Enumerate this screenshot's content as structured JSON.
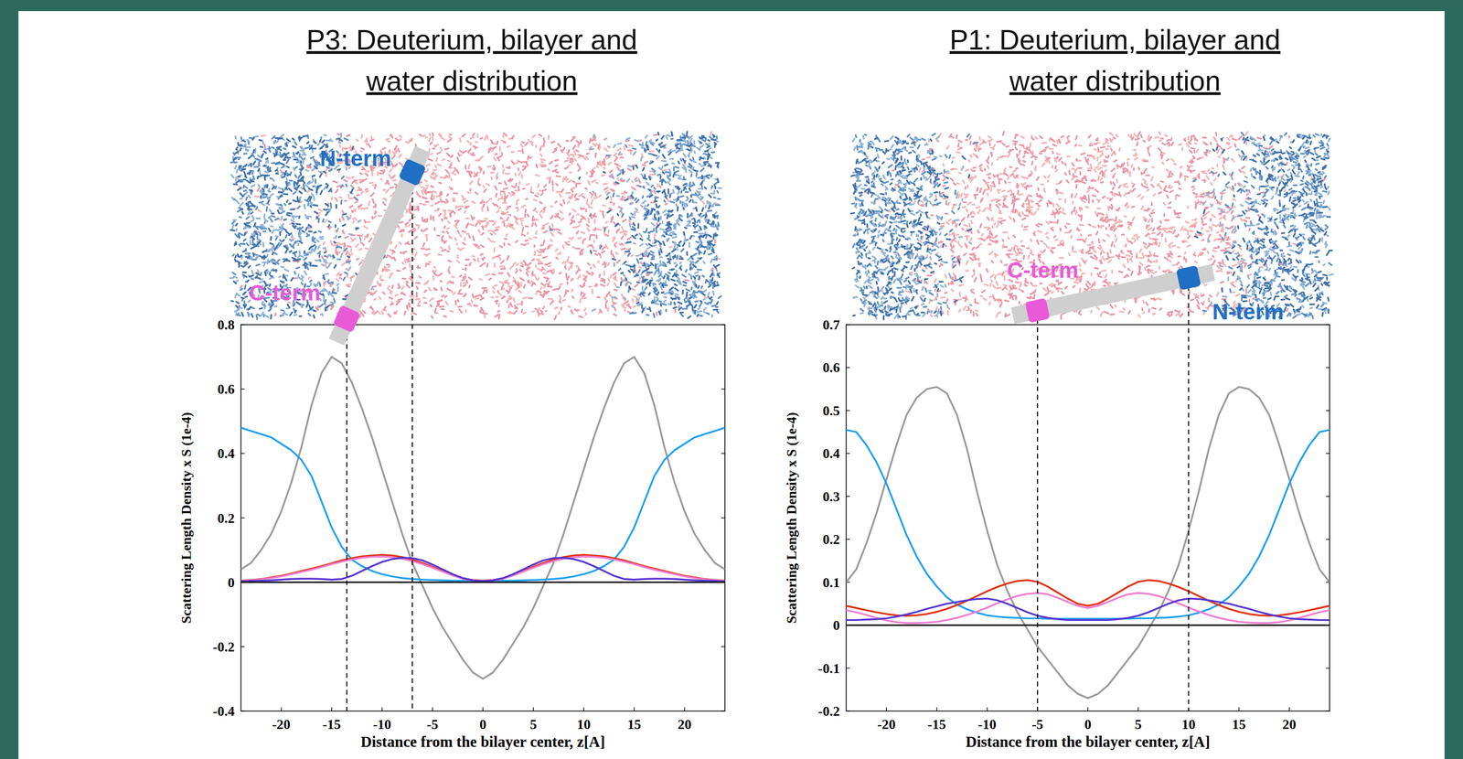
{
  "chart_data": [
    {
      "type": "line",
      "title": "P3: Deuterium, bilayer and water distribution",
      "x_label": "Distance from the bilayer center, z[A]",
      "y_label": "Scattering Length Density x S (1e-4)",
      "x": [
        -24,
        -23,
        -22,
        -21,
        -20,
        -19,
        -18,
        -17,
        -16,
        -15,
        -14,
        -13,
        -12,
        -11,
        -10,
        -9,
        -8,
        -7,
        -6,
        -5,
        -4,
        -3,
        -2,
        -1,
        0,
        1,
        2,
        3,
        4,
        5,
        6,
        7,
        8,
        9,
        10,
        11,
        12,
        13,
        14,
        15,
        16,
        17,
        18,
        19,
        20,
        21,
        22,
        23,
        24
      ],
      "xlim": [
        -24,
        24
      ],
      "xticks": [
        -20,
        -15,
        -10,
        -5,
        0,
        5,
        10,
        15,
        20
      ],
      "ylim": [
        -0.4,
        0.8
      ],
      "yticks": [
        -0.4,
        -0.2,
        0,
        0.2,
        0.4,
        0.6,
        0.8
      ],
      "series": [
        {
          "color": "#999999",
          "values": [
            0.04,
            0.06,
            0.1,
            0.15,
            0.22,
            0.31,
            0.42,
            0.55,
            0.65,
            0.7,
            0.68,
            0.62,
            0.54,
            0.45,
            0.35,
            0.25,
            0.15,
            0.06,
            -0.01,
            -0.08,
            -0.14,
            -0.19,
            -0.24,
            -0.28,
            -0.3,
            -0.28,
            -0.24,
            -0.19,
            -0.14,
            -0.08,
            -0.01,
            0.06,
            0.15,
            0.25,
            0.35,
            0.45,
            0.54,
            0.62,
            0.68,
            0.7,
            0.65,
            0.55,
            0.42,
            0.31,
            0.22,
            0.15,
            0.1,
            0.06,
            0.04
          ]
        },
        {
          "color": "#1ea0ef",
          "values": [
            0.48,
            0.47,
            0.46,
            0.45,
            0.43,
            0.41,
            0.38,
            0.33,
            0.25,
            0.17,
            0.11,
            0.07,
            0.05,
            0.035,
            0.025,
            0.018,
            0.013,
            0.01,
            0.008,
            0.007,
            0.006,
            0.005,
            0.005,
            0.005,
            0.005,
            0.005,
            0.005,
            0.005,
            0.006,
            0.007,
            0.008,
            0.01,
            0.013,
            0.018,
            0.025,
            0.035,
            0.05,
            0.07,
            0.11,
            0.17,
            0.25,
            0.33,
            0.38,
            0.41,
            0.43,
            0.45,
            0.46,
            0.47,
            0.48
          ]
        },
        {
          "color": "#e0300f",
          "values": [
            0.005,
            0.007,
            0.01,
            0.015,
            0.02,
            0.027,
            0.035,
            0.042,
            0.05,
            0.059,
            0.068,
            0.075,
            0.08,
            0.083,
            0.085,
            0.083,
            0.078,
            0.07,
            0.06,
            0.048,
            0.035,
            0.022,
            0.012,
            0.007,
            0.005,
            0.007,
            0.012,
            0.022,
            0.035,
            0.048,
            0.06,
            0.07,
            0.078,
            0.083,
            0.085,
            0.083,
            0.08,
            0.075,
            0.068,
            0.059,
            0.05,
            0.042,
            0.035,
            0.027,
            0.02,
            0.015,
            0.01,
            0.007,
            0.005
          ]
        },
        {
          "color": "#f07ccf",
          "values": [
            0.004,
            0.006,
            0.009,
            0.013,
            0.018,
            0.025,
            0.032,
            0.039,
            0.047,
            0.056,
            0.064,
            0.071,
            0.076,
            0.079,
            0.08,
            0.078,
            0.073,
            0.066,
            0.056,
            0.045,
            0.033,
            0.021,
            0.011,
            0.006,
            0.004,
            0.006,
            0.011,
            0.021,
            0.033,
            0.045,
            0.056,
            0.066,
            0.073,
            0.078,
            0.08,
            0.079,
            0.076,
            0.071,
            0.064,
            0.056,
            0.047,
            0.039,
            0.032,
            0.025,
            0.018,
            0.013,
            0.009,
            0.006,
            0.004
          ]
        },
        {
          "color": "#5535d0",
          "values": [
            0.003,
            0.004,
            0.005,
            0.006,
            0.008,
            0.01,
            0.011,
            0.011,
            0.01,
            0.008,
            0.01,
            0.02,
            0.035,
            0.05,
            0.063,
            0.072,
            0.076,
            0.075,
            0.068,
            0.055,
            0.04,
            0.025,
            0.013,
            0.006,
            0.004,
            0.006,
            0.013,
            0.025,
            0.04,
            0.055,
            0.068,
            0.075,
            0.076,
            0.072,
            0.063,
            0.05,
            0.035,
            0.02,
            0.01,
            0.008,
            0.01,
            0.011,
            0.011,
            0.01,
            0.008,
            0.006,
            0.005,
            0.004,
            0.003
          ]
        }
      ],
      "annotations": [
        {
          "text": "N-term",
          "x": -7,
          "color": "#1f6fc4"
        },
        {
          "text": "C-term",
          "x": -13.5,
          "color": "#e85ad8"
        }
      ]
    },
    {
      "type": "line",
      "title": "P1: Deuterium, bilayer and water distribution",
      "x_label": "Distance from the bilayer center, z[A]",
      "y_label": "Scattering Length Density x S (1e-4)",
      "x": [
        -24,
        -23,
        -22,
        -21,
        -20,
        -19,
        -18,
        -17,
        -16,
        -15,
        -14,
        -13,
        -12,
        -11,
        -10,
        -9,
        -8,
        -7,
        -6,
        -5,
        -4,
        -3,
        -2,
        -1,
        0,
        1,
        2,
        3,
        4,
        5,
        6,
        7,
        8,
        9,
        10,
        11,
        12,
        13,
        14,
        15,
        16,
        17,
        18,
        19,
        20,
        21,
        22,
        23,
        24
      ],
      "xlim": [
        -24,
        24
      ],
      "xticks": [
        -20,
        -15,
        -10,
        -5,
        0,
        5,
        10,
        15,
        20
      ],
      "ylim": [
        -0.2,
        0.7
      ],
      "yticks": [
        -0.2,
        -0.1,
        0,
        0.1,
        0.2,
        0.3,
        0.4,
        0.5,
        0.6,
        0.7
      ],
      "series": [
        {
          "color": "#999999",
          "values": [
            0.1,
            0.13,
            0.19,
            0.26,
            0.34,
            0.42,
            0.49,
            0.53,
            0.55,
            0.555,
            0.54,
            0.49,
            0.41,
            0.31,
            0.22,
            0.14,
            0.08,
            0.03,
            -0.01,
            -0.05,
            -0.08,
            -0.11,
            -0.14,
            -0.16,
            -0.17,
            -0.16,
            -0.14,
            -0.11,
            -0.08,
            -0.05,
            -0.01,
            0.03,
            0.08,
            0.14,
            0.22,
            0.31,
            0.41,
            0.49,
            0.54,
            0.555,
            0.55,
            0.53,
            0.49,
            0.42,
            0.34,
            0.26,
            0.19,
            0.13,
            0.1
          ]
        },
        {
          "color": "#1ea0ef",
          "values": [
            0.455,
            0.45,
            0.42,
            0.38,
            0.33,
            0.27,
            0.21,
            0.16,
            0.12,
            0.09,
            0.065,
            0.048,
            0.037,
            0.029,
            0.023,
            0.02,
            0.018,
            0.017,
            0.016,
            0.016,
            0.015,
            0.015,
            0.015,
            0.015,
            0.015,
            0.015,
            0.015,
            0.015,
            0.015,
            0.016,
            0.016,
            0.017,
            0.018,
            0.02,
            0.023,
            0.029,
            0.037,
            0.048,
            0.065,
            0.09,
            0.12,
            0.16,
            0.21,
            0.27,
            0.33,
            0.38,
            0.42,
            0.45,
            0.455
          ]
        },
        {
          "color": "#e0300f",
          "values": [
            0.045,
            0.04,
            0.035,
            0.03,
            0.026,
            0.023,
            0.022,
            0.023,
            0.026,
            0.031,
            0.038,
            0.047,
            0.057,
            0.068,
            0.079,
            0.089,
            0.097,
            0.103,
            0.105,
            0.101,
            0.09,
            0.076,
            0.062,
            0.05,
            0.045,
            0.05,
            0.062,
            0.076,
            0.09,
            0.101,
            0.105,
            0.103,
            0.097,
            0.089,
            0.079,
            0.068,
            0.057,
            0.047,
            0.038,
            0.031,
            0.026,
            0.023,
            0.022,
            0.023,
            0.026,
            0.03,
            0.035,
            0.04,
            0.045
          ]
        },
        {
          "color": "#f07ccf",
          "values": [
            0.035,
            0.03,
            0.024,
            0.017,
            0.011,
            0.007,
            0.005,
            0.005,
            0.006,
            0.008,
            0.012,
            0.017,
            0.024,
            0.032,
            0.041,
            0.051,
            0.06,
            0.068,
            0.073,
            0.075,
            0.072,
            0.064,
            0.054,
            0.045,
            0.04,
            0.045,
            0.054,
            0.064,
            0.072,
            0.075,
            0.073,
            0.068,
            0.06,
            0.051,
            0.041,
            0.032,
            0.024,
            0.017,
            0.012,
            0.008,
            0.006,
            0.005,
            0.005,
            0.007,
            0.011,
            0.017,
            0.024,
            0.03,
            0.035
          ]
        },
        {
          "color": "#5535d0",
          "values": [
            0.012,
            0.012,
            0.013,
            0.014,
            0.016,
            0.02,
            0.025,
            0.031,
            0.038,
            0.044,
            0.05,
            0.054,
            0.058,
            0.061,
            0.062,
            0.058,
            0.05,
            0.04,
            0.03,
            0.022,
            0.017,
            0.014,
            0.012,
            0.012,
            0.012,
            0.012,
            0.012,
            0.014,
            0.017,
            0.022,
            0.03,
            0.04,
            0.05,
            0.058,
            0.062,
            0.061,
            0.058,
            0.054,
            0.05,
            0.044,
            0.038,
            0.031,
            0.025,
            0.02,
            0.016,
            0.014,
            0.013,
            0.012,
            0.012
          ]
        }
      ],
      "annotations": [
        {
          "text": "C-term",
          "x": -5,
          "color": "#e85ad8"
        },
        {
          "text": "N-term",
          "x": 10,
          "color": "#1f6fc4"
        }
      ]
    }
  ]
}
